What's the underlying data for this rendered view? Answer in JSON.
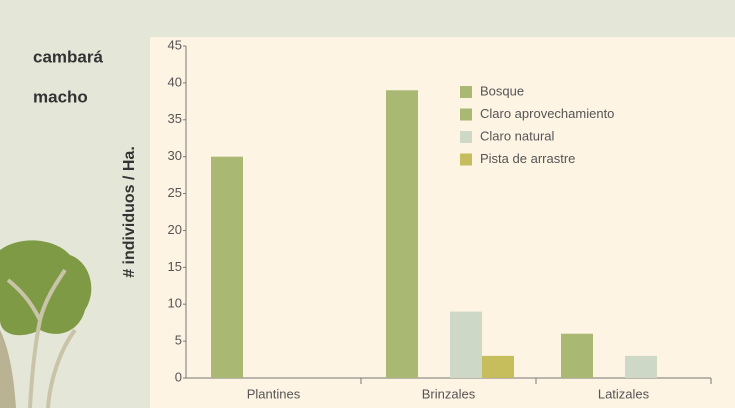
{
  "chart_data": {
    "type": "bar",
    "title": "cambará",
    "subtitle": "macho",
    "y_label": "# individuos / Ha.",
    "categories": [
      "Plantines",
      "Brinzales",
      "Latizales"
    ],
    "series": [
      {
        "name": "Bosque",
        "color": "#a9b872",
        "values": [
          30,
          39,
          6
        ]
      },
      {
        "name": "Claro aprovechamiento",
        "color": "#a9b872",
        "values": [
          0,
          0,
          0
        ]
      },
      {
        "name": "Claro natural",
        "color": "#cdd8c6",
        "values": [
          0,
          9,
          3
        ]
      },
      {
        "name": "Pista de arrastre",
        "color": "#c6be5c",
        "values": [
          0,
          3,
          0
        ]
      }
    ],
    "ylim": [
      0,
      45
    ],
    "yticks": [
      0,
      5,
      10,
      15,
      20,
      25,
      30,
      35,
      40,
      45
    ]
  }
}
